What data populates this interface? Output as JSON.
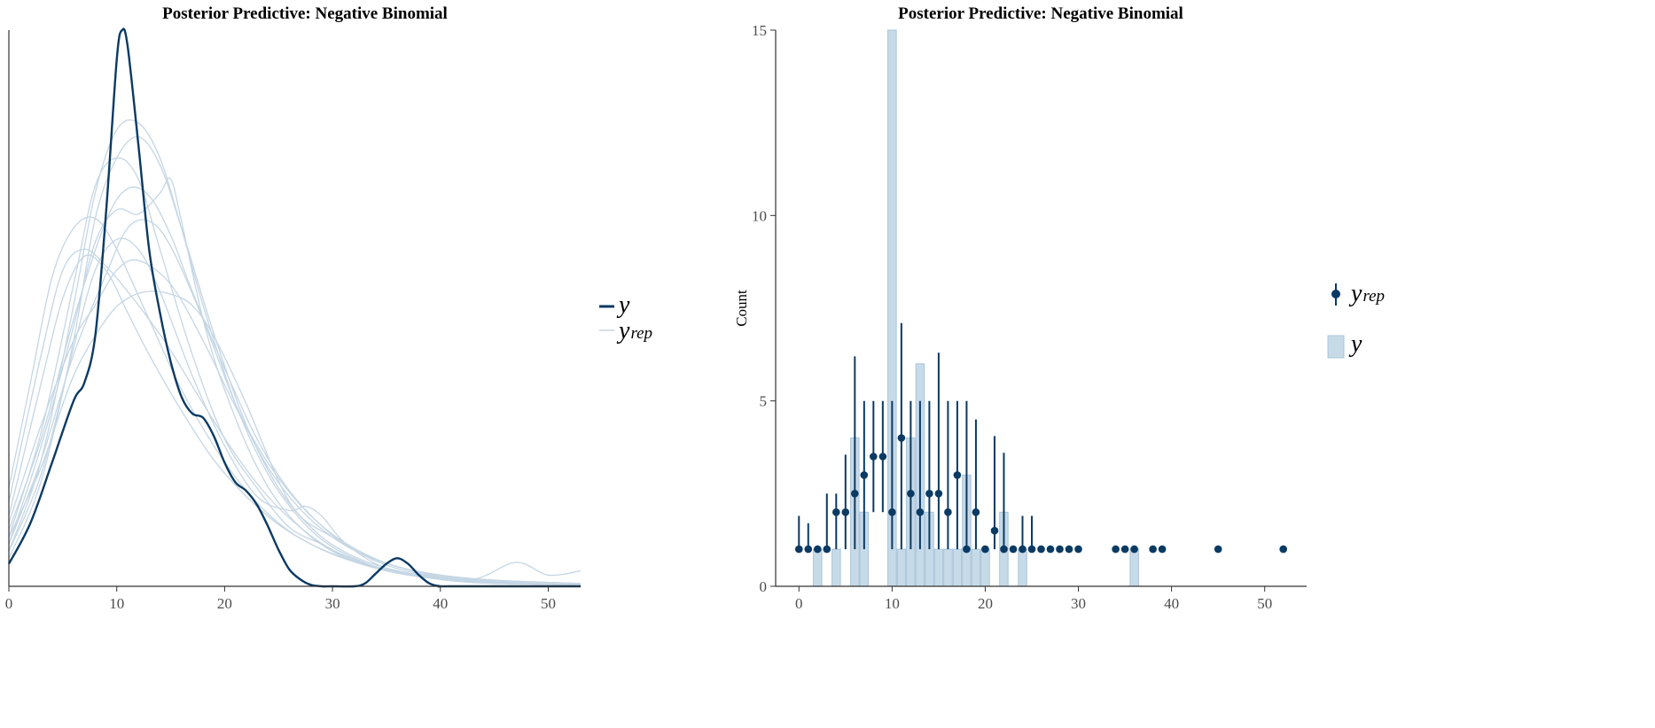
{
  "colors": {
    "dark": "#0b3a63",
    "light": "#c9dae7",
    "light_line": "#c5d6e4",
    "bar_fill": "#c7dae8",
    "bar_stroke": "#a9c4d9",
    "axis": "#333333"
  },
  "chart_data": [
    {
      "type": "density",
      "title": "Posterior Predictive: Negative Binomial",
      "xlim": [
        0,
        53
      ],
      "xticks": [
        0,
        10,
        20,
        30,
        40,
        50
      ],
      "xlabel": "",
      "ylabel": "",
      "legend": {
        "position": "right",
        "entries": [
          {
            "main": "y",
            "sub": "",
            "style": "dark-line"
          },
          {
            "main": "y",
            "sub": "rep",
            "style": "light-line"
          }
        ]
      },
      "observed": {
        "name": "y",
        "x": [
          0,
          2,
          4,
          6,
          7,
          8,
          9,
          10,
          10.5,
          11,
          12,
          13,
          14,
          15,
          16,
          17,
          18,
          19,
          20,
          21,
          22,
          23,
          24,
          25,
          26,
          27,
          28,
          29,
          30,
          32,
          33,
          34,
          35,
          36,
          37,
          38,
          39,
          40,
          41,
          53
        ],
        "density": [
          0.016,
          0.045,
          0.088,
          0.132,
          0.145,
          0.178,
          0.265,
          0.375,
          0.396,
          0.385,
          0.315,
          0.24,
          0.195,
          0.16,
          0.135,
          0.123,
          0.12,
          0.107,
          0.088,
          0.074,
          0.068,
          0.058,
          0.043,
          0.026,
          0.012,
          0.005,
          0.001,
          0,
          0,
          0,
          0.002,
          0.009,
          0.016,
          0.02,
          0.016,
          0.008,
          0.002,
          0,
          0,
          0
        ]
      },
      "replicates": [
        {
          "x": [
            0,
            3,
            6,
            8,
            10,
            12,
            14,
            17,
            20,
            23,
            26,
            29,
            32,
            36,
            40,
            44,
            48,
            53
          ],
          "density": [
            0.035,
            0.11,
            0.215,
            0.285,
            0.305,
            0.29,
            0.24,
            0.165,
            0.105,
            0.07,
            0.042,
            0.03,
            0.018,
            0.01,
            0.006,
            0.004,
            0.002,
            0.001
          ]
        },
        {
          "x": [
            0,
            3,
            6,
            8,
            10,
            12,
            14,
            15,
            16,
            18,
            20,
            23,
            26,
            30,
            35,
            40,
            45,
            53
          ],
          "density": [
            0.03,
            0.1,
            0.185,
            0.245,
            0.268,
            0.265,
            0.28,
            0.29,
            0.26,
            0.19,
            0.14,
            0.085,
            0.05,
            0.025,
            0.012,
            0.007,
            0.004,
            0.002
          ]
        },
        {
          "x": [
            0,
            2,
            4,
            6,
            8,
            10,
            13,
            16,
            19,
            22,
            25,
            28,
            32,
            36,
            40,
            45,
            53
          ],
          "density": [
            0.07,
            0.145,
            0.22,
            0.255,
            0.262,
            0.24,
            0.19,
            0.14,
            0.1,
            0.068,
            0.045,
            0.03,
            0.018,
            0.01,
            0.006,
            0.003,
            0.001
          ]
        },
        {
          "x": [
            0,
            3,
            6,
            9,
            11,
            13,
            15,
            17,
            19,
            22,
            25,
            27,
            30,
            34,
            38,
            43,
            47,
            50,
            53
          ],
          "density": [
            0.035,
            0.085,
            0.15,
            0.19,
            0.205,
            0.21,
            0.208,
            0.2,
            0.178,
            0.13,
            0.075,
            0.05,
            0.035,
            0.018,
            0.009,
            0.005,
            0.017,
            0.008,
            0.011
          ]
        },
        {
          "x": [
            0,
            3,
            6,
            8,
            10,
            12,
            14,
            17,
            20,
            23,
            26,
            27.5,
            29,
            31,
            34,
            37,
            41,
            45,
            53
          ],
          "density": [
            0.025,
            0.08,
            0.17,
            0.225,
            0.247,
            0.24,
            0.21,
            0.15,
            0.1,
            0.064,
            0.054,
            0.057,
            0.05,
            0.032,
            0.016,
            0.009,
            0.004,
            0.002,
            0.001
          ]
        },
        {
          "x": [
            0,
            3,
            5,
            7,
            9,
            11,
            13,
            16,
            19,
            22,
            25,
            28,
            31,
            35,
            39,
            45,
            53
          ],
          "density": [
            0.05,
            0.145,
            0.205,
            0.235,
            0.225,
            0.195,
            0.165,
            0.125,
            0.09,
            0.064,
            0.044,
            0.03,
            0.02,
            0.011,
            0.006,
            0.003,
            0.001
          ]
        },
        {
          "x": [
            0,
            3,
            6,
            9,
            11,
            13,
            15,
            18,
            21,
            24,
            27,
            30,
            33,
            37,
            41,
            46,
            53
          ],
          "density": [
            0.03,
            0.09,
            0.165,
            0.222,
            0.255,
            0.26,
            0.242,
            0.19,
            0.13,
            0.085,
            0.055,
            0.035,
            0.022,
            0.012,
            0.007,
            0.004,
            0.002
          ]
        },
        {
          "x": [
            0,
            3,
            6,
            8,
            10,
            12,
            14,
            16,
            19,
            22,
            25,
            28,
            31,
            35,
            40,
            46,
            53
          ],
          "density": [
            0.02,
            0.075,
            0.175,
            0.262,
            0.305,
            0.32,
            0.3,
            0.255,
            0.18,
            0.115,
            0.07,
            0.042,
            0.025,
            0.013,
            0.006,
            0.003,
            0.001
          ]
        },
        {
          "x": [
            0,
            3,
            6,
            8,
            10,
            12,
            14,
            16,
            18,
            21,
            24,
            27,
            30,
            34,
            38,
            44,
            53
          ],
          "density": [
            0.025,
            0.09,
            0.2,
            0.28,
            0.325,
            0.33,
            0.305,
            0.255,
            0.2,
            0.13,
            0.08,
            0.048,
            0.028,
            0.014,
            0.007,
            0.003,
            0.001
          ]
        },
        {
          "x": [
            0,
            3,
            6,
            9,
            11,
            13,
            15,
            17,
            20,
            23,
            26,
            29,
            32,
            36,
            40,
            45,
            53
          ],
          "density": [
            0.04,
            0.105,
            0.19,
            0.26,
            0.283,
            0.278,
            0.25,
            0.21,
            0.155,
            0.105,
            0.068,
            0.043,
            0.026,
            0.014,
            0.007,
            0.003,
            0.001
          ]
        },
        {
          "x": [
            0,
            3,
            6,
            8,
            10,
            12,
            15,
            18,
            21,
            24,
            27,
            30,
            33,
            36,
            40,
            45,
            53
          ],
          "density": [
            0.045,
            0.115,
            0.175,
            0.2,
            0.225,
            0.232,
            0.215,
            0.175,
            0.128,
            0.088,
            0.058,
            0.037,
            0.023,
            0.014,
            0.008,
            0.004,
            0.002
          ]
        },
        {
          "x": [
            0,
            3,
            5,
            7,
            9,
            11,
            13,
            15,
            18,
            21,
            24,
            27,
            30,
            34,
            38,
            43,
            53
          ],
          "density": [
            0.06,
            0.165,
            0.225,
            0.24,
            0.228,
            0.21,
            0.19,
            0.168,
            0.13,
            0.094,
            0.064,
            0.042,
            0.026,
            0.014,
            0.007,
            0.003,
            0.001
          ]
        }
      ]
    },
    {
      "type": "bar",
      "title": "Posterior Predictive: Negative Binomial",
      "xlim": [
        -2.5,
        54.5
      ],
      "ylim": [
        0,
        15
      ],
      "xticks": [
        0,
        10,
        20,
        30,
        40,
        50
      ],
      "yticks": [
        0,
        5,
        10,
        15
      ],
      "xlabel": "",
      "ylabel": "Count",
      "legend": {
        "position": "right",
        "entries": [
          {
            "main": "y",
            "sub": "rep",
            "style": "point-range"
          },
          {
            "main": "y",
            "sub": "",
            "style": "bar"
          }
        ]
      },
      "observed_counts": {
        "name": "y",
        "x": [
          2,
          4,
          6,
          7,
          10,
          11,
          12,
          13,
          14,
          15,
          16,
          17,
          18,
          19,
          20,
          22,
          24,
          36
        ],
        "values": [
          1,
          1,
          4,
          2,
          15,
          1,
          4,
          6,
          2,
          1,
          1,
          1,
          3,
          1,
          1,
          2,
          1,
          1
        ]
      },
      "replicated": {
        "name": "y_rep",
        "x": [
          0,
          1,
          2,
          3,
          4,
          5,
          6,
          7,
          8,
          9,
          10,
          11,
          12,
          13,
          14,
          15,
          16,
          17,
          18,
          19,
          20,
          21,
          22,
          23,
          24,
          25,
          26,
          27,
          28,
          29,
          30,
          34,
          35,
          36,
          38,
          39,
          45,
          52
        ],
        "median": [
          1,
          1,
          1,
          1,
          2,
          2,
          2.5,
          3,
          3.5,
          3.5,
          2,
          4,
          2.5,
          2,
          2.5,
          2.5,
          2,
          3,
          1,
          2,
          1,
          1.5,
          1,
          1,
          1,
          1,
          1,
          1,
          1,
          1,
          1,
          1,
          1,
          1,
          1,
          1,
          1,
          1
        ],
        "lower": [
          1,
          1,
          1,
          1,
          1,
          1,
          1,
          1,
          2,
          2,
          1,
          1,
          1,
          1,
          1,
          1,
          1,
          1,
          1,
          1,
          1,
          1,
          1,
          1,
          1,
          1,
          1,
          1,
          1,
          1,
          1,
          1,
          1,
          1,
          1,
          1,
          1,
          1
        ],
        "upper": [
          1.9,
          1.7,
          1,
          2.5,
          2.5,
          3.55,
          6.2,
          5,
          5,
          5,
          5,
          7.1,
          5,
          5,
          5,
          6.3,
          5,
          5,
          5,
          4.5,
          1,
          4.05,
          3.6,
          1,
          1.9,
          1.9,
          1,
          1,
          1,
          1,
          1,
          1,
          1,
          1,
          1,
          1,
          1,
          1
        ]
      }
    }
  ]
}
